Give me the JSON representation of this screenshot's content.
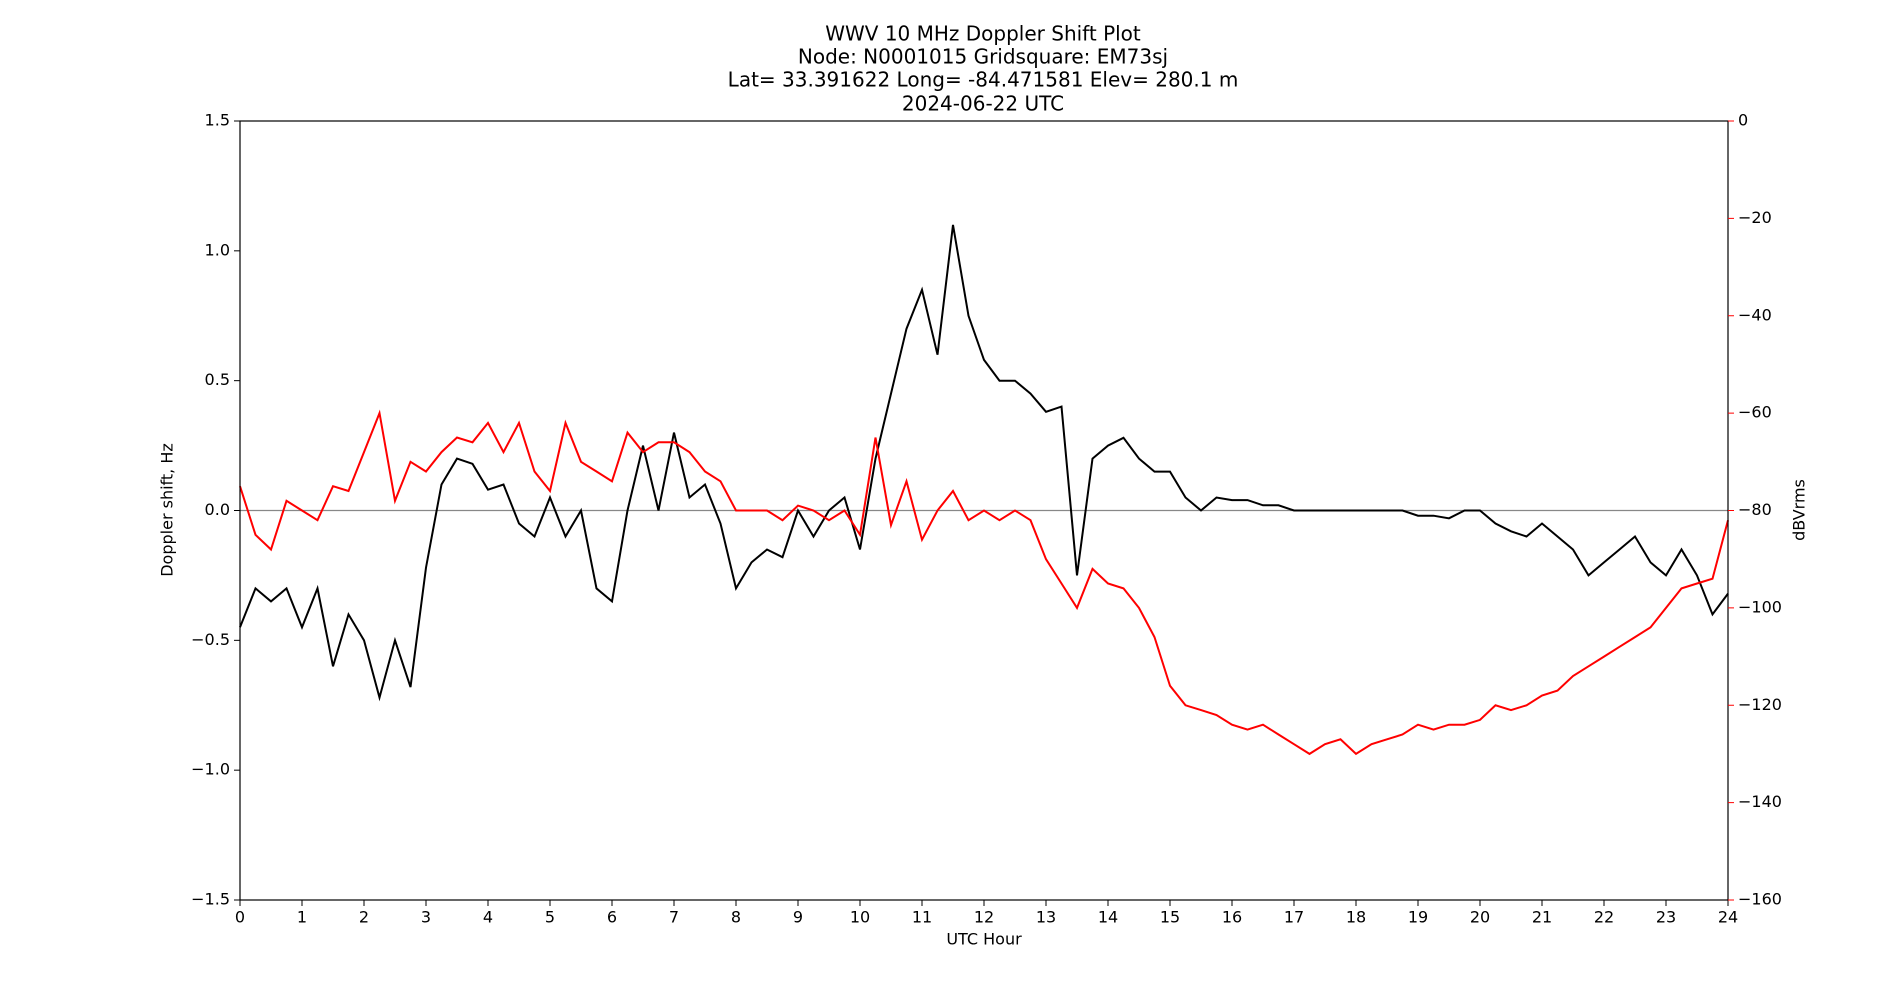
{
  "chart_data": {
    "type": "line",
    "title": [
      "WWV 10 MHz Doppler Shift Plot",
      "Node:  N0001015     Gridsquare:  EM73sj",
      "Lat= 33.391622    Long= -84.471581    Elev= 280.1 m",
      "2024-06-22  UTC"
    ],
    "xlabel": "UTC Hour",
    "ylabel": "Doppler shift, Hz",
    "y2label": "dBVrms",
    "x": [
      0,
      0.25,
      0.5,
      0.75,
      1,
      1.25,
      1.5,
      1.75,
      2,
      2.25,
      2.5,
      2.75,
      3,
      3.25,
      3.5,
      3.75,
      4,
      4.25,
      4.5,
      4.75,
      5,
      5.25,
      5.5,
      5.75,
      6,
      6.25,
      6.5,
      6.75,
      7,
      7.25,
      7.5,
      7.75,
      8,
      8.25,
      8.5,
      8.75,
      9,
      9.25,
      9.5,
      9.75,
      10,
      10.25,
      10.5,
      10.75,
      11,
      11.25,
      11.5,
      11.75,
      12,
      12.25,
      12.5,
      12.75,
      13,
      13.25,
      13.5,
      13.75,
      14,
      14.25,
      14.5,
      14.75,
      15,
      15.25,
      15.5,
      15.75,
      16,
      16.25,
      16.5,
      16.75,
      17,
      17.25,
      17.5,
      17.75,
      18,
      18.25,
      18.5,
      18.75,
      19,
      19.25,
      19.5,
      19.75,
      20,
      20.25,
      20.5,
      20.75,
      21,
      21.25,
      21.5,
      21.75,
      22,
      22.25,
      22.5,
      22.75,
      23,
      23.25,
      23.5,
      23.75,
      24
    ],
    "series": [
      {
        "color": "#000000",
        "axis": "y",
        "values": [
          -0.45,
          -0.3,
          -0.35,
          -0.3,
          -0.45,
          -0.3,
          -0.6,
          -0.4,
          -0.5,
          -0.72,
          -0.5,
          -0.68,
          -0.22,
          0.1,
          0.2,
          0.18,
          0.08,
          0.1,
          -0.05,
          -0.1,
          0.05,
          -0.1,
          0,
          -0.3,
          -0.35,
          0,
          0.25,
          0,
          0.3,
          0.05,
          0.1,
          -0.05,
          -0.3,
          -0.2,
          -0.15,
          -0.18,
          0,
          -0.1,
          0,
          0.05,
          -0.15,
          0.2,
          0.45,
          0.7,
          0.85,
          0.6,
          1.1,
          0.75,
          0.58,
          0.5,
          0.5,
          0.45,
          0.38,
          0.4,
          -0.25,
          0.2,
          0.25,
          0.28,
          0.2,
          0.15,
          0.15,
          0.05,
          0,
          0.05,
          0.04,
          0.04,
          0.02,
          0.02,
          0,
          0,
          0,
          0,
          0,
          0,
          0,
          0,
          -0.02,
          -0.02,
          -0.03,
          0,
          0,
          -0.05,
          -0.08,
          -0.1,
          -0.05,
          -0.1,
          -0.15,
          -0.25,
          -0.2,
          -0.15,
          -0.1,
          -0.2,
          -0.25,
          -0.15,
          -0.25,
          -0.4,
          -0.32
        ]
      },
      {
        "color": "#ff0000",
        "axis": "y2",
        "values": [
          -75,
          -85,
          -88,
          -78,
          -80,
          -82,
          -75,
          -76,
          -68,
          -60,
          -78,
          -70,
          -72,
          -68,
          -65,
          -66,
          -62,
          -68,
          -62,
          -72,
          -76,
          -62,
          -70,
          -72,
          -74,
          -64,
          -68,
          -66,
          -66,
          -68,
          -72,
          -74,
          -80,
          -80,
          -80,
          -82,
          -79,
          -80,
          -82,
          -80,
          -85,
          -65,
          -83,
          -74,
          -86,
          -80,
          -76,
          -82,
          -80,
          -82,
          -80,
          -82,
          -90,
          -95,
          -100,
          -92,
          -95,
          -96,
          -100,
          -106,
          -116,
          -120,
          -121,
          -122,
          -124,
          -125,
          -124,
          -126,
          -128,
          -130,
          -128,
          -127,
          -130,
          -128,
          -127,
          -126,
          -124,
          -125,
          -124,
          -124,
          -123,
          -120,
          -121,
          -120,
          -118,
          -117,
          -114,
          -112,
          -110,
          -108,
          -106,
          -104,
          -100,
          -96,
          -95,
          -94,
          -82
        ]
      }
    ],
    "hline": 0,
    "hline_color": "#888888",
    "xlim": [
      0,
      24
    ],
    "xticks": [
      0,
      1,
      2,
      3,
      4,
      5,
      6,
      7,
      8,
      9,
      10,
      11,
      12,
      13,
      14,
      15,
      16,
      17,
      18,
      19,
      20,
      21,
      22,
      23,
      24
    ],
    "ylim": [
      -1.5,
      1.5
    ],
    "yticks": [
      {
        "value": -1.5,
        "label": "−1.5"
      },
      {
        "value": -1,
        "label": "−1.0"
      },
      {
        "value": -0.5,
        "label": "−0.5"
      },
      {
        "value": 0,
        "label": "0.0"
      },
      0.5,
      {
        "value": 1,
        "label": "1.0"
      },
      1.5
    ],
    "y2lim": [
      -160,
      0
    ],
    "y2ticks": [
      {
        "value": -160,
        "label": "−160"
      },
      {
        "value": -140,
        "label": "−140"
      },
      {
        "value": -120,
        "label": "−120"
      },
      {
        "value": -100,
        "label": "−100"
      },
      {
        "value": -80,
        "label": "−80"
      },
      {
        "value": -60,
        "label": "−60"
      },
      {
        "value": -40,
        "label": "−40"
      },
      {
        "value": -20,
        "label": "−20"
      },
      0
    ],
    "y2color": "#ff0000"
  }
}
